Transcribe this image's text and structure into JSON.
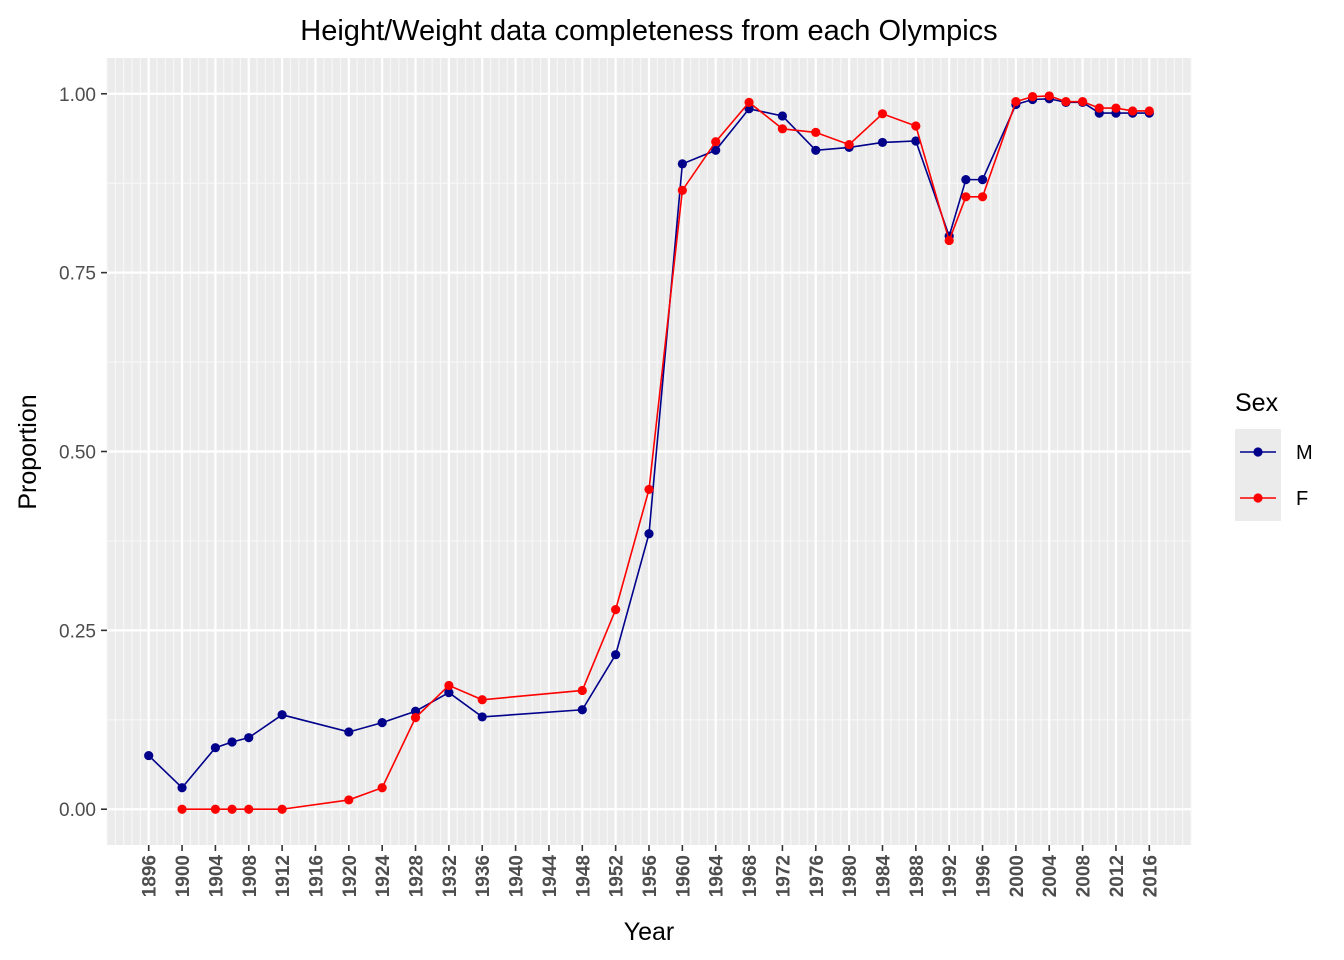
{
  "chart_data": {
    "type": "line",
    "title": "Height/Weight data completeness from each Olympics",
    "xlabel": "Year",
    "ylabel": "Proportion",
    "xlim": [
      1891,
      2021
    ],
    "ylim": [
      -0.05,
      1.05
    ],
    "x_ticks": [
      1896,
      1900,
      1904,
      1908,
      1912,
      1916,
      1920,
      1924,
      1928,
      1932,
      1936,
      1940,
      1944,
      1948,
      1952,
      1956,
      1960,
      1964,
      1968,
      1972,
      1976,
      1980,
      1984,
      1988,
      1992,
      1996,
      2000,
      2004,
      2008,
      2012,
      2016
    ],
    "x_minor_step": 1,
    "y_ticks": [
      0.0,
      0.25,
      0.5,
      0.75,
      1.0
    ],
    "y_tick_labels": [
      "0.00",
      "0.25",
      "0.50",
      "0.75",
      "1.00"
    ],
    "grid": true,
    "legend": {
      "title": "Sex",
      "position": "right"
    },
    "series": [
      {
        "name": "M",
        "color": "#00008b",
        "points": [
          [
            1896,
            0.075
          ],
          [
            1900,
            0.03
          ],
          [
            1904,
            0.086
          ],
          [
            1906,
            0.094
          ],
          [
            1908,
            0.1
          ],
          [
            1912,
            0.132
          ],
          [
            1920,
            0.108
          ],
          [
            1924,
            0.121
          ],
          [
            1928,
            0.137
          ],
          [
            1932,
            0.163
          ],
          [
            1936,
            0.129
          ],
          [
            1948,
            0.139
          ],
          [
            1952,
            0.216
          ],
          [
            1956,
            0.385
          ],
          [
            1960,
            0.902
          ],
          [
            1964,
            0.921
          ],
          [
            1968,
            0.979
          ],
          [
            1972,
            0.969
          ],
          [
            1976,
            0.921
          ],
          [
            1980,
            0.925
          ],
          [
            1984,
            0.932
          ],
          [
            1988,
            0.934
          ],
          [
            1992,
            0.801
          ],
          [
            1994,
            0.88
          ],
          [
            1996,
            0.88
          ],
          [
            2000,
            0.985
          ],
          [
            2002,
            0.992
          ],
          [
            2004,
            0.993
          ],
          [
            2006,
            0.988
          ],
          [
            2008,
            0.988
          ],
          [
            2010,
            0.973
          ],
          [
            2012,
            0.973
          ],
          [
            2014,
            0.973
          ],
          [
            2016,
            0.973
          ]
        ]
      },
      {
        "name": "F",
        "color": "#ff0000",
        "points": [
          [
            1900,
            0.0
          ],
          [
            1904,
            0.0
          ],
          [
            1906,
            0.0
          ],
          [
            1908,
            0.0
          ],
          [
            1912,
            0.0
          ],
          [
            1920,
            0.013
          ],
          [
            1924,
            0.03
          ],
          [
            1928,
            0.128
          ],
          [
            1932,
            0.173
          ],
          [
            1936,
            0.153
          ],
          [
            1948,
            0.166
          ],
          [
            1952,
            0.279
          ],
          [
            1956,
            0.447
          ],
          [
            1960,
            0.865
          ],
          [
            1964,
            0.933
          ],
          [
            1968,
            0.988
          ],
          [
            1972,
            0.951
          ],
          [
            1976,
            0.946
          ],
          [
            1980,
            0.929
          ],
          [
            1984,
            0.972
          ],
          [
            1988,
            0.955
          ],
          [
            1992,
            0.795
          ],
          [
            1994,
            0.856
          ],
          [
            1996,
            0.856
          ],
          [
            2000,
            0.989
          ],
          [
            2002,
            0.996
          ],
          [
            2004,
            0.997
          ],
          [
            2006,
            0.989
          ],
          [
            2008,
            0.989
          ],
          [
            2010,
            0.98
          ],
          [
            2012,
            0.98
          ],
          [
            2014,
            0.976
          ],
          [
            2016,
            0.976
          ]
        ]
      }
    ]
  }
}
